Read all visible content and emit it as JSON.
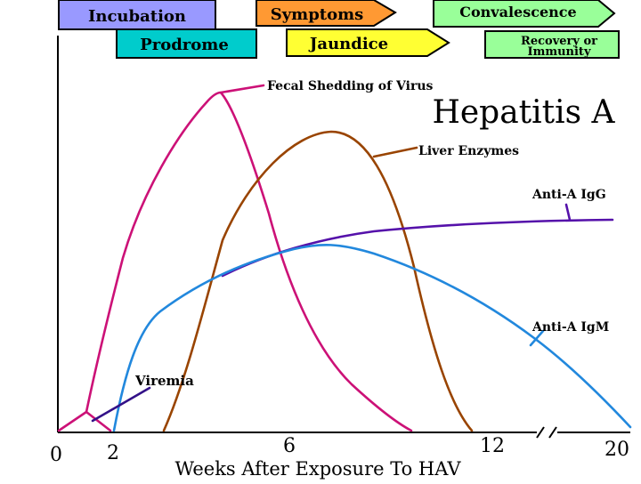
{
  "title": "Hepatitis A",
  "phases": {
    "incubation": "Incubation",
    "prodrome": "Prodrome",
    "symptoms": "Symptoms",
    "jaundice": "Jaundice",
    "convalescence": "Convalescence",
    "recovery_line1": "Recovery or",
    "recovery_line2": "Immunity"
  },
  "curve_labels": {
    "fecal": "Fecal Shedding of Virus",
    "liver": "Liver Enzymes",
    "igg": "Anti-A IgG",
    "igm": "Anti-A IgM",
    "viremia": "Viremia"
  },
  "axis": {
    "xlabel": "Weeks After Exposure To HAV",
    "ticks": [
      "0",
      "2",
      "6",
      "12",
      "20"
    ]
  },
  "colors": {
    "incubation": "#9999ff",
    "prodrome": "#00cccc",
    "symptoms": "#ff9933",
    "jaundice": "#ffff33",
    "convalescence": "#99ff99",
    "recovery": "#99ff99",
    "fecal": "#cc1177",
    "liver": "#994400",
    "igg": "#5511aa",
    "igm": "#2288dd",
    "viremia": "#331188"
  }
}
